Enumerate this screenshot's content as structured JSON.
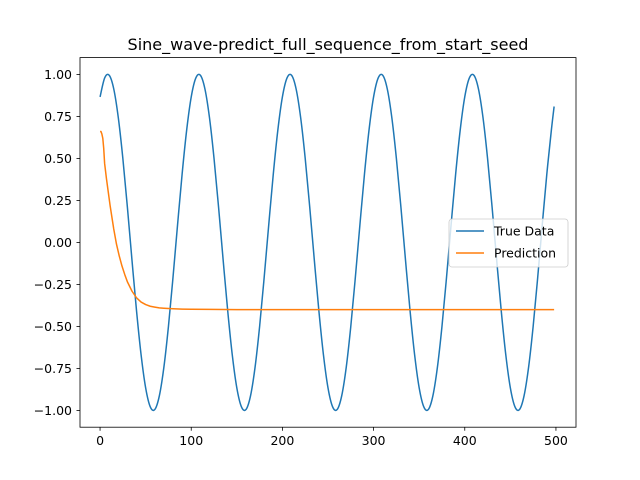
{
  "chart_data": {
    "type": "line",
    "title": "Sine_wave-predict_full_sequence_from_start_seed",
    "xlabel": "",
    "ylabel": "",
    "xlim": [
      -22,
      522
    ],
    "ylim": [
      -1.1,
      1.1
    ],
    "x_ticks": [
      0,
      100,
      200,
      300,
      400,
      500
    ],
    "x_tick_labels": [
      "0",
      "100",
      "200",
      "300",
      "400",
      "500"
    ],
    "y_ticks": [
      1.0,
      0.75,
      0.5,
      0.25,
      0.0,
      -0.25,
      -0.5,
      -0.75,
      -1.0
    ],
    "y_tick_labels": [
      "1.00",
      "0.75",
      "0.50",
      "0.25",
      "0.00",
      "−0.25",
      "−0.50",
      "−0.75",
      "−1.00"
    ],
    "grid": false,
    "legend_position": "center-right",
    "series": [
      {
        "name": "True Data",
        "color": "#1f77b4",
        "x": [
          0,
          5,
          10,
          15,
          20,
          25,
          30,
          35,
          40,
          45,
          50,
          55,
          60,
          65,
          70,
          75,
          80,
          85,
          90,
          95,
          100,
          105,
          110,
          115,
          120,
          125,
          130,
          135,
          140,
          145,
          150,
          155,
          160,
          165,
          170,
          175,
          180,
          185,
          190,
          195,
          200,
          205,
          210,
          215,
          220,
          225,
          230,
          235,
          240,
          245,
          250,
          255,
          260,
          265,
          270,
          275,
          280,
          285,
          290,
          295,
          300,
          305,
          310,
          315,
          320,
          325,
          330,
          335,
          340,
          345,
          350,
          355,
          360,
          365,
          370,
          375,
          380,
          385,
          390,
          395,
          400,
          405,
          410,
          415,
          420,
          425,
          430,
          435,
          440,
          445,
          450,
          455,
          460,
          465,
          470,
          475,
          480,
          485,
          490,
          495,
          498
        ],
        "y": [
          0.866,
          0.978,
          0.995,
          0.914,
          0.743,
          0.5,
          0.208,
          -0.105,
          -0.407,
          -0.669,
          -0.866,
          -0.978,
          -0.995,
          -0.914,
          -0.743,
          -0.5,
          -0.208,
          0.105,
          0.407,
          0.669,
          0.866,
          0.978,
          0.995,
          0.914,
          0.743,
          0.5,
          0.208,
          -0.105,
          -0.407,
          -0.669,
          -0.866,
          -0.978,
          -0.995,
          -0.914,
          -0.743,
          -0.5,
          -0.208,
          0.105,
          0.407,
          0.669,
          0.866,
          0.978,
          0.995,
          0.914,
          0.743,
          0.5,
          0.208,
          -0.105,
          -0.407,
          -0.669,
          -0.866,
          -0.978,
          -0.995,
          -0.914,
          -0.743,
          -0.5,
          -0.208,
          0.105,
          0.407,
          0.669,
          0.866,
          0.978,
          0.995,
          0.914,
          0.743,
          0.5,
          0.208,
          -0.105,
          -0.407,
          -0.669,
          -0.866,
          -0.978,
          -0.995,
          -0.914,
          -0.743,
          -0.5,
          -0.208,
          0.105,
          0.407,
          0.669,
          0.866,
          0.978,
          0.995,
          0.914,
          0.743,
          0.5,
          0.208,
          -0.105,
          -0.407,
          -0.669,
          -0.866,
          -0.978,
          -0.995,
          -0.914,
          -0.743,
          -0.5,
          -0.208,
          0.105,
          0.407,
          0.669,
          0.809
        ]
      },
      {
        "name": "Prediction",
        "color": "#ff7f0e",
        "x": [
          0,
          1,
          2,
          3,
          4,
          5,
          7,
          9,
          11,
          13,
          15,
          18,
          21,
          24,
          27,
          30,
          35,
          40,
          45,
          50,
          55,
          60,
          65,
          70,
          80,
          90,
          100,
          120,
          150,
          200,
          250,
          300,
          350,
          400,
          450,
          498
        ],
        "y": [
          0.66,
          0.66,
          0.645,
          0.62,
          0.56,
          0.47,
          0.38,
          0.3,
          0.22,
          0.15,
          0.08,
          -0.01,
          -0.08,
          -0.14,
          -0.19,
          -0.235,
          -0.29,
          -0.33,
          -0.355,
          -0.37,
          -0.38,
          -0.385,
          -0.39,
          -0.392,
          -0.395,
          -0.397,
          -0.398,
          -0.399,
          -0.4,
          -0.4,
          -0.4,
          -0.4,
          -0.4,
          -0.4,
          -0.4,
          -0.4
        ]
      }
    ]
  }
}
